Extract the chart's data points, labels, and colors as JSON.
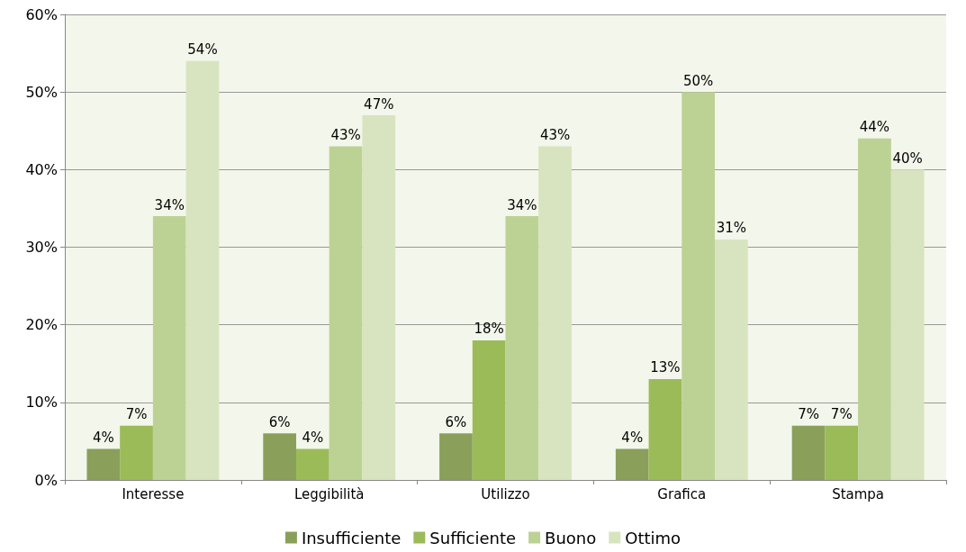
{
  "chart_data": {
    "type": "bar",
    "categories": [
      "Interesse",
      "Leggibilità",
      "Utilizzo",
      "Grafica",
      "Stampa"
    ],
    "series": [
      {
        "name": "Insufficiente",
        "color": "#8aa05a",
        "values": [
          4,
          6,
          6,
          4,
          7
        ],
        "value_labels": [
          "4%",
          "6%",
          "6%",
          "4%",
          "7%"
        ]
      },
      {
        "name": "Sufficiente",
        "color": "#9bbb59",
        "values": [
          7,
          4,
          18,
          13,
          7
        ],
        "value_labels": [
          "7%",
          "4%",
          "18%",
          "13%",
          "7%"
        ]
      },
      {
        "name": "Buono",
        "color": "#bcd294",
        "values": [
          34,
          43,
          34,
          50,
          44
        ],
        "value_labels": [
          "34%",
          "43%",
          "34%",
          "50%",
          "44%"
        ]
      },
      {
        "name": "Ottimo",
        "color": "#d8e4bf",
        "values": [
          54,
          47,
          43,
          31,
          40
        ],
        "value_labels": [
          "54%",
          "47%",
          "43%",
          "31%",
          "40%"
        ]
      }
    ],
    "ylim": [
      0,
      60
    ],
    "yticks": [
      {
        "value": 0,
        "label": "0%"
      },
      {
        "value": 10,
        "label": "10%"
      },
      {
        "value": 20,
        "label": "20%"
      },
      {
        "value": 30,
        "label": "30%"
      },
      {
        "value": 40,
        "label": "40%"
      },
      {
        "value": 50,
        "label": "50%"
      },
      {
        "value": 60,
        "label": "60%"
      }
    ],
    "grid": "y",
    "legend": "bottom"
  }
}
